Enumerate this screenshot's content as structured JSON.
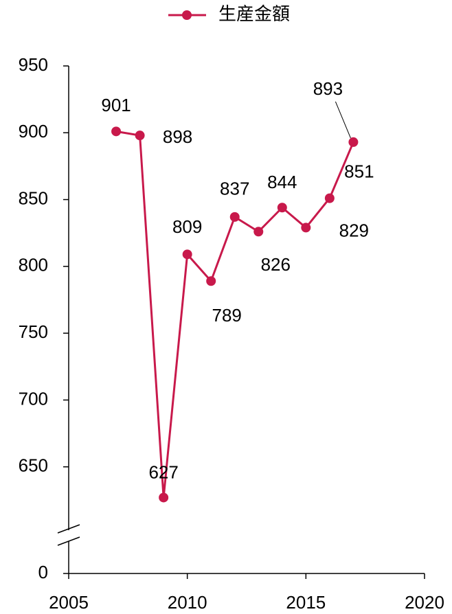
{
  "chart_data": {
    "type": "line",
    "x": [
      2007,
      2008,
      2009,
      2010,
      2011,
      2012,
      2013,
      2014,
      2015,
      2016,
      2017
    ],
    "series": [
      {
        "name": "生産金額",
        "color": "#c8194b",
        "values": [
          901,
          898,
          627,
          809,
          789,
          837,
          826,
          844,
          829,
          851,
          893
        ]
      }
    ],
    "xlim": [
      2005,
      2020
    ],
    "xticks": [
      2005,
      2010,
      2015,
      2020
    ],
    "ylim": [
      0,
      950
    ],
    "yticks": [
      0,
      650,
      700,
      750,
      800,
      850,
      900,
      950
    ],
    "ybreak": [
      0,
      600
    ],
    "grid": false,
    "legend": "top"
  }
}
